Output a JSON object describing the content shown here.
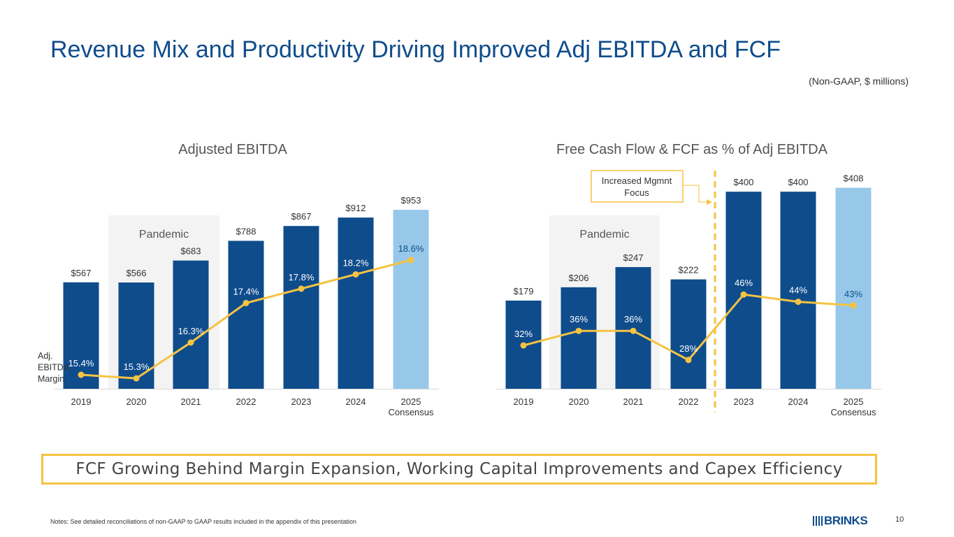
{
  "page": {
    "title": "Revenue Mix and Productivity Driving Improved Adj EBITDA and FCF",
    "units_note": "(Non-GAAP, $ millions)",
    "callout": "FCF Growing Behind Margin Expansion, Working Capital Improvements and Capex Efficiency",
    "notes": "Notes: See detailed reconciliations of non-GAAP to GAAP results included in the appendix of this presentation",
    "page_number": "10",
    "logo_text": "BRINKS"
  },
  "colors": {
    "actual_bar": "#0f4c8c",
    "consensus_bar": "#97c8ea",
    "line": "#f5c342",
    "pandemic_shade": "#f3f3f3",
    "title": "#0f4c8c"
  },
  "chart_data": [
    {
      "type": "bar",
      "title": "Adjusted EBITDA",
      "categories": [
        "2019",
        "2020",
        "2021",
        "2022",
        "2023",
        "2024",
        "2025\nConsensus"
      ],
      "series": [
        {
          "name": "Adjusted EBITDA",
          "values": [
            567,
            566,
            683,
            788,
            867,
            912,
            953
          ],
          "labels": [
            "$567",
            "$566",
            "$683",
            "$788",
            "$867",
            "$912",
            "$953"
          ]
        },
        {
          "name": "Adj. EBITDA Margin",
          "type": "line",
          "values": [
            15.4,
            15.3,
            16.3,
            17.4,
            17.8,
            18.2,
            18.6
          ],
          "labels": [
            "15.4%",
            "15.3%",
            "16.3%",
            "17.4%",
            "17.8%",
            "18.2%",
            "18.6%"
          ]
        }
      ],
      "consensus_index": 6,
      "line_legend": "Adj.\nEBITDA\nMargin",
      "annotations": [
        {
          "text": "Pandemic",
          "span": [
            "2020",
            "2021"
          ]
        }
      ],
      "ylim": [
        0,
        1000
      ],
      "line_ylim": [
        14,
        20
      ]
    },
    {
      "type": "bar",
      "title": "Free Cash Flow & FCF as % of Adj EBITDA",
      "categories": [
        "2019",
        "2020",
        "2021",
        "2022",
        "2023",
        "2024",
        "2025\nConsensus"
      ],
      "series": [
        {
          "name": "Free Cash Flow",
          "values": [
            179,
            206,
            247,
            222,
            400,
            400,
            408
          ],
          "labels": [
            "$179",
            "$206",
            "$247",
            "$222",
            "$400",
            "$400",
            "$408"
          ]
        },
        {
          "name": "FCF as % of Adj EBITDA",
          "type": "line",
          "values": [
            32,
            36,
            36,
            28,
            46,
            44,
            43
          ],
          "labels": [
            "32%",
            "36%",
            "36%",
            "28%",
            "46%",
            "44%",
            "43%"
          ]
        }
      ],
      "consensus_index": 6,
      "annotations": [
        {
          "text": "Pandemic",
          "span": [
            "2020",
            "2021"
          ]
        },
        {
          "text": "Increased Mgmnt\nFocus",
          "marker": "dashed line between 2022 and 2023"
        }
      ],
      "ylim": [
        0,
        420
      ],
      "line_ylim": [
        0,
        60
      ]
    }
  ]
}
